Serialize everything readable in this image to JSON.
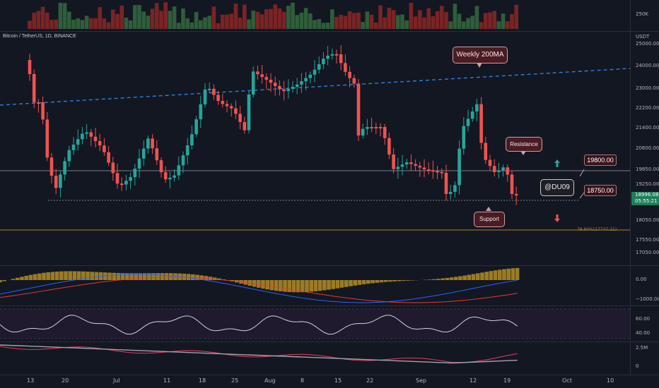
{
  "header": {
    "symbol": "Bitcoin / TetherUS, 1D, BINANCE"
  },
  "volume": {
    "axis_label": "250K"
  },
  "price_axis": {
    "currency": "USDT",
    "labels": [
      "25000.00",
      "24000.00",
      "23000.00",
      "22200.00",
      "21400.00",
      "20600.00",
      "19850.00",
      "19250.00",
      "18050.00",
      "17550.00",
      "17050.00"
    ],
    "last_price": "18996.08",
    "countdown": "05:55:21"
  },
  "annotations": {
    "weekly_ma": "Weekly 200MA",
    "resistance": "Resistance",
    "support": "Support",
    "author": "@DU09",
    "level_high": "19800.00",
    "level_low": "18750.00",
    "fib": "78.60%(17747.21)"
  },
  "macd": {
    "labels": [
      "0.00",
      "−1000.00"
    ]
  },
  "rsi": {
    "labels": [
      "60.00",
      "40.00"
    ]
  },
  "lower": {
    "labels": [
      "2.5M",
      "0"
    ]
  },
  "time_axis": [
    "13",
    "20",
    "Jul",
    "11",
    "18",
    "25",
    "Aug",
    "8",
    "15",
    "22",
    "Sep",
    "12",
    "19",
    "Oct",
    "10"
  ],
  "colors": {
    "up": "#26a69a",
    "down": "#ef5350",
    "background": "#131722",
    "ma_line": "#2962ff",
    "fib_line": "#b3812b"
  }
}
